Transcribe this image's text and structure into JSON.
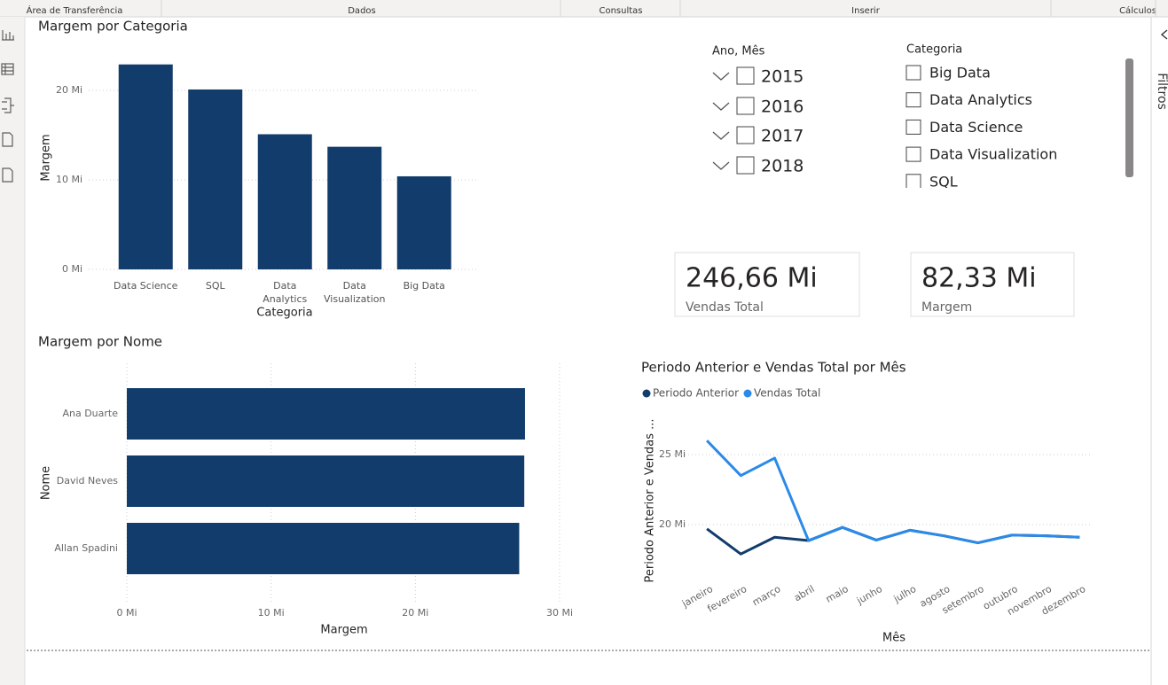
{
  "ribbon": {
    "groups": [
      "Área de Transferência",
      "Dados",
      "Consultas",
      "Inserir",
      "Cálculos"
    ]
  },
  "chart_data": [
    {
      "type": "bar",
      "title": "Margem por Categoria",
      "x_label": "Categoria",
      "y_label": "Margem",
      "categories": [
        "Data Science",
        "SQL",
        "Data Analytics",
        "Data Visualization",
        "Big Data"
      ],
      "values": [
        22.9,
        20.1,
        15.1,
        13.7,
        10.4
      ],
      "color": "#123c6b",
      "ylim": [
        0,
        23
      ],
      "yticks": [
        {
          "value": 0,
          "label": "0 Mi"
        },
        {
          "value": 10,
          "label": "10 Mi"
        },
        {
          "value": 20,
          "label": "20 Mi"
        }
      ],
      "grid": true
    },
    {
      "type": "hbar",
      "title": "Margem por Nome",
      "x_label": "Margem",
      "y_label": "Nome",
      "categories": [
        "Ana Duarte",
        "David Neves",
        "Allan Spadini"
      ],
      "values": [
        27.6,
        27.55,
        27.2
      ],
      "color": "#123c6b",
      "xlim": [
        0,
        30
      ],
      "xticks": [
        {
          "value": 0,
          "label": "0 Mi"
        },
        {
          "value": 10,
          "label": "10 Mi"
        },
        {
          "value": 20,
          "label": "20 Mi"
        },
        {
          "value": 30,
          "label": "30 Mi"
        }
      ],
      "grid": true
    },
    {
      "type": "line",
      "title": "Periodo Anterior e Vendas Total por Mês",
      "x_label": "Mês",
      "y_label": "Periodo Anterior e Vendas ...",
      "categories": [
        "janeiro",
        "fevereiro",
        "março",
        "abril",
        "maio",
        "junho",
        "julho",
        "agosto",
        "setembro",
        "outubro",
        "novembro",
        "dezembro"
      ],
      "series": [
        {
          "name": "Periodo Anterior",
          "color": "#123c6b",
          "values": [
            19.7,
            17.9,
            19.1,
            18.86,
            19.8,
            18.9,
            19.6,
            19.2,
            18.7,
            19.25,
            19.2,
            19.1
          ]
        },
        {
          "name": "Vendas Total",
          "color": "#2b8ae8",
          "values": [
            26.0,
            23.5,
            24.75,
            18.86,
            19.8,
            18.9,
            19.6,
            19.2,
            18.7,
            19.25,
            19.2,
            19.1
          ]
        }
      ],
      "ylim": [
        16.3,
        27.5
      ],
      "yticks": [
        {
          "value": 20,
          "label": "20 Mi"
        },
        {
          "value": 25,
          "label": "25 Mi"
        }
      ],
      "grid": true,
      "legend": "top-left"
    }
  ],
  "slicers": [
    {
      "title": "Ano, Mês",
      "items": [
        "2015",
        "2016",
        "2017",
        "2018"
      ]
    },
    {
      "title": "Categoria",
      "items": [
        "Big Data",
        "Data Analytics",
        "Data Science",
        "Data Visualization",
        "SQL"
      ]
    }
  ],
  "cards": [
    {
      "value": "246,66 Mi",
      "label": "Vendas Total"
    },
    {
      "value": "82,33 Mi",
      "label": "Margem"
    }
  ],
  "filters_pane": {
    "title": "Filtros"
  }
}
